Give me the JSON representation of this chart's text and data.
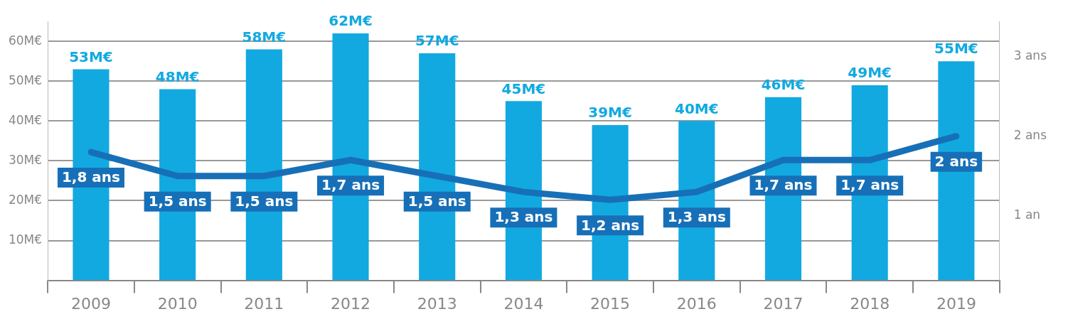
{
  "chart_data": {
    "type": "bar",
    "categories": [
      "2009",
      "2010",
      "2011",
      "2012",
      "2013",
      "2014",
      "2015",
      "2016",
      "2017",
      "2018",
      "2019"
    ],
    "series": [
      {
        "color": "#12a9e1",
        "values": [
          53,
          48,
          58,
          62,
          57,
          45,
          39,
          40,
          46,
          49,
          55
        ],
        "value_labels": [
          "53M€",
          "48M€",
          "58M€",
          "62M€",
          "57M€",
          "45M€",
          "39M€",
          "40M€",
          "46M€",
          "49M€",
          "55M€"
        ]
      },
      {
        "type": "line",
        "axis": "y2",
        "color": "#1770b7",
        "values": [
          1.8,
          1.5,
          1.5,
          1.7,
          1.5,
          1.3,
          1.2,
          1.3,
          1.7,
          1.7,
          2
        ],
        "value_labels": [
          "1,8 ans",
          "1,5 ans",
          "1,5 ans",
          "1,7 ans",
          "1,5 ans",
          "1,3 ans",
          "1,2 ans",
          "1,3 ans",
          "1,7 ans",
          "1,7 ans",
          "2 ans"
        ]
      }
    ],
    "ylim": [
      0,
      65
    ],
    "yticks": [
      {
        "value": 10,
        "label": "10M€"
      },
      {
        "value": 20,
        "label": "20M€"
      },
      {
        "value": 30,
        "label": "30M€"
      },
      {
        "value": 40,
        "label": "40M€"
      },
      {
        "value": 50,
        "label": "50M€"
      },
      {
        "value": 60,
        "label": "60M€"
      }
    ],
    "y2lim": [
      0.19,
      3.44
    ],
    "y2ticks": [
      {
        "value": 1,
        "label": "1 an"
      },
      {
        "value": 2,
        "label": "2 ans"
      },
      {
        "value": 3,
        "label": "3 ans"
      }
    ],
    "grid": "y"
  }
}
